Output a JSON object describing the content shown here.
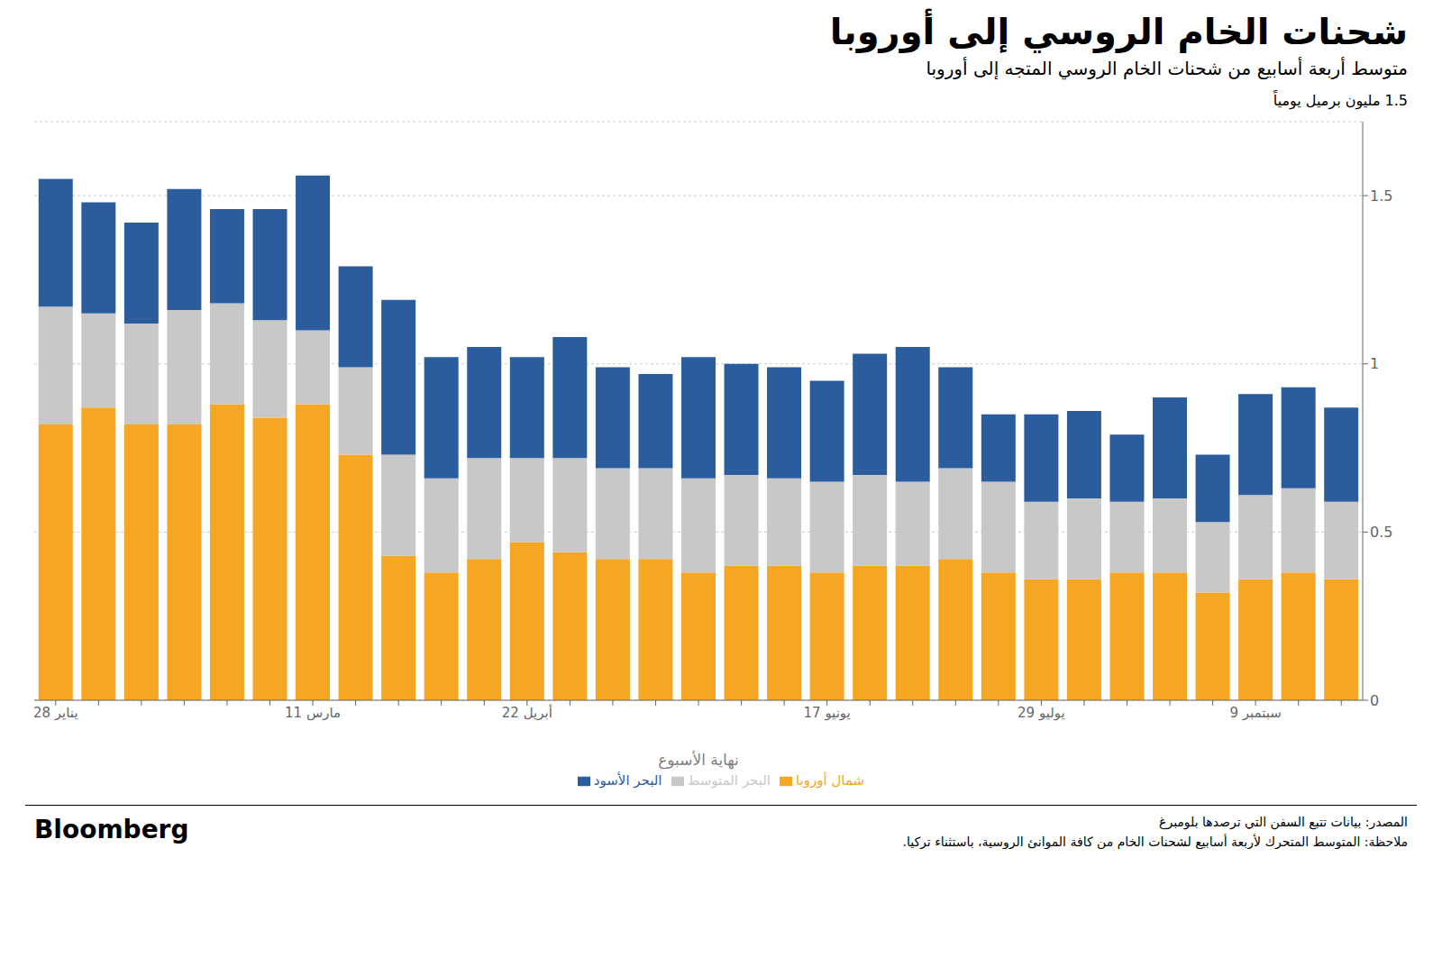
{
  "chart_data": {
    "type": "bar",
    "stacked": true,
    "title": "شحنات الخام الروسي إلى أوروبا",
    "subtitle": "متوسط أربعة أسابيع من شحنات الخام الروسي المتجه إلى أوروبا",
    "y_label": "1.5 مليون برميل يومياً",
    "x_label": "نهاية الأسبوع",
    "source": "المصدر: بيانات تتبع السفن التي ترصدها بلومبرغ",
    "note": "ملاحظة: المتوسط المتحرك لأربعة أسابيع لشحنات الخام من كافة الموانئ الروسية، باستثناء تركيا.",
    "annotations": [
      "Bloomberg"
    ],
    "categories": [
      "28 يناير",
      null,
      null,
      null,
      null,
      null,
      "11 مارس",
      null,
      null,
      null,
      null,
      "22 أبريل",
      null,
      null,
      null,
      null,
      null,
      null,
      "17 يونيو",
      null,
      null,
      null,
      null,
      "29 يوليو",
      null,
      null,
      null,
      null,
      "9 سبتمبر",
      null,
      null
    ],
    "series": [
      {
        "name": "شمال أوروبا",
        "color": "#F5A623",
        "values": [
          0.82,
          0.87,
          0.82,
          0.82,
          0.88,
          0.84,
          0.88,
          0.73,
          0.43,
          0.38,
          0.42,
          0.47,
          0.44,
          0.42,
          0.42,
          0.38,
          0.4,
          0.4,
          0.38,
          0.4,
          0.4,
          0.42,
          0.38,
          0.36,
          0.36,
          0.38,
          0.38,
          0.32,
          0.36,
          0.38,
          0.36
        ]
      },
      {
        "name": "البحر المتوسط",
        "color": "#C8C8C8",
        "values": [
          0.35,
          0.28,
          0.3,
          0.34,
          0.3,
          0.29,
          0.22,
          0.26,
          0.3,
          0.28,
          0.3,
          0.25,
          0.28,
          0.27,
          0.27,
          0.28,
          0.27,
          0.26,
          0.27,
          0.27,
          0.25,
          0.27,
          0.27,
          0.23,
          0.24,
          0.21,
          0.22,
          0.21,
          0.25,
          0.25,
          0.23
        ]
      },
      {
        "name": "البحر الأسود",
        "color": "#2B5C9E",
        "values": [
          0.38,
          0.33,
          0.3,
          0.36,
          0.28,
          0.33,
          0.46,
          0.3,
          0.46,
          0.36,
          0.33,
          0.3,
          0.36,
          0.3,
          0.28,
          0.36,
          0.33,
          0.33,
          0.3,
          0.36,
          0.4,
          0.3,
          0.2,
          0.26,
          0.26,
          0.2,
          0.3,
          0.2,
          0.3,
          0.3,
          0.28
        ]
      }
    ],
    "ylim": [
      0,
      1.72
    ],
    "yticks": [
      0,
      0.5,
      1,
      1.5
    ],
    "grid": true,
    "legend": "bottom"
  }
}
